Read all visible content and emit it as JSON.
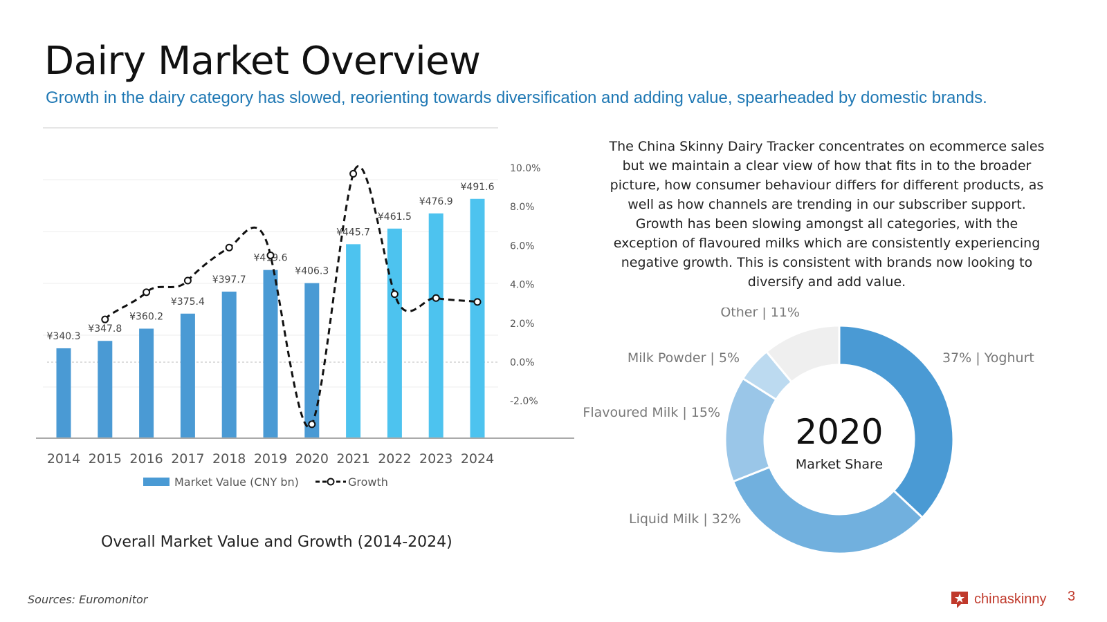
{
  "slide": {
    "title": "Dairy Market Overview",
    "subtitle": "Growth in the dairy category has slowed, reorienting towards diversification and adding value, spearheaded by domestic brands.",
    "paragraph": "The China Skinny Dairy Tracker concentrates on ecommerce sales but we maintain a clear view of how that fits in to the broader picture, how consumer behaviour differs for different products, as well as how channels are trending in our subscriber support. Growth has been slowing amongst all categories, with the exception of flavoured milks which are consistently experiencing negative growth. This is consistent with brands now looking to diversify and add value.",
    "sources": "Sources: Euromonitor",
    "brand": "chinaskinny",
    "page_number": "3"
  },
  "colors": {
    "bar_actual": "#4a9ad4",
    "bar_forecast": "#4dc3ef",
    "growth_line": "#111111",
    "subtitle": "#1f78b4",
    "brand": "#c0392b"
  },
  "chart_data": [
    {
      "type": "bar",
      "caption": "Overall Market Value and Growth (2014-2024)",
      "categories": [
        "2014",
        "2015",
        "2016",
        "2017",
        "2018",
        "2019",
        "2020",
        "2021",
        "2022",
        "2023",
        "2024"
      ],
      "series": [
        {
          "name": "Market Value (CNY bn)",
          "axis": "primary",
          "values": [
            340.3,
            347.8,
            360.2,
            375.4,
            397.7,
            419.6,
            406.3,
            445.7,
            461.5,
            476.9,
            491.6
          ],
          "data_labels": [
            "¥340.3",
            "¥347.8",
            "¥360.2",
            "¥375.4",
            "¥397.7",
            "¥419.6",
            "¥406.3",
            "¥445.7",
            "¥461.5",
            "¥476.9",
            "¥491.6"
          ],
          "forecast_from": "2021"
        },
        {
          "name": "Growth",
          "type": "line",
          "style": "dashed with circle markers",
          "axis": "secondary",
          "values": [
            null,
            2.2,
            3.6,
            4.2,
            5.9,
            5.5,
            -3.2,
            9.7,
            3.5,
            3.3,
            3.1
          ]
        }
      ],
      "secondary_axis": {
        "ticks": [
          "10.0%",
          "8.0%",
          "6.0%",
          "4.0%",
          "2.0%",
          "0.0%",
          "-2.0%"
        ],
        "tick_values": [
          10,
          8,
          6,
          4,
          2,
          0,
          -2
        ],
        "range": [
          -4,
          12
        ]
      },
      "legend": {
        "placement": "bottom",
        "items": [
          "Market Value (CNY bn)",
          "Growth"
        ]
      }
    },
    {
      "type": "pie",
      "variant": "donut",
      "center_title": "2020",
      "center_subtitle": "Market Share",
      "slices": [
        {
          "name": "Yoghurt",
          "value": 37,
          "label": "37% | Yoghurt",
          "color": "#4a9ad4"
        },
        {
          "name": "Liquid Milk",
          "value": 32,
          "label": "Liquid Milk | 32%",
          "color": "#71b0de"
        },
        {
          "name": "Flavoured Milk",
          "value": 15,
          "label": "Flavoured Milk | 15%",
          "color": "#9ac6e8"
        },
        {
          "name": "Milk Powder",
          "value": 5,
          "label": "Milk Powder | 5%",
          "color": "#bcdaf0"
        },
        {
          "name": "Other",
          "value": 11,
          "label": "Other | 11%",
          "color": "#efefef"
        }
      ]
    }
  ]
}
